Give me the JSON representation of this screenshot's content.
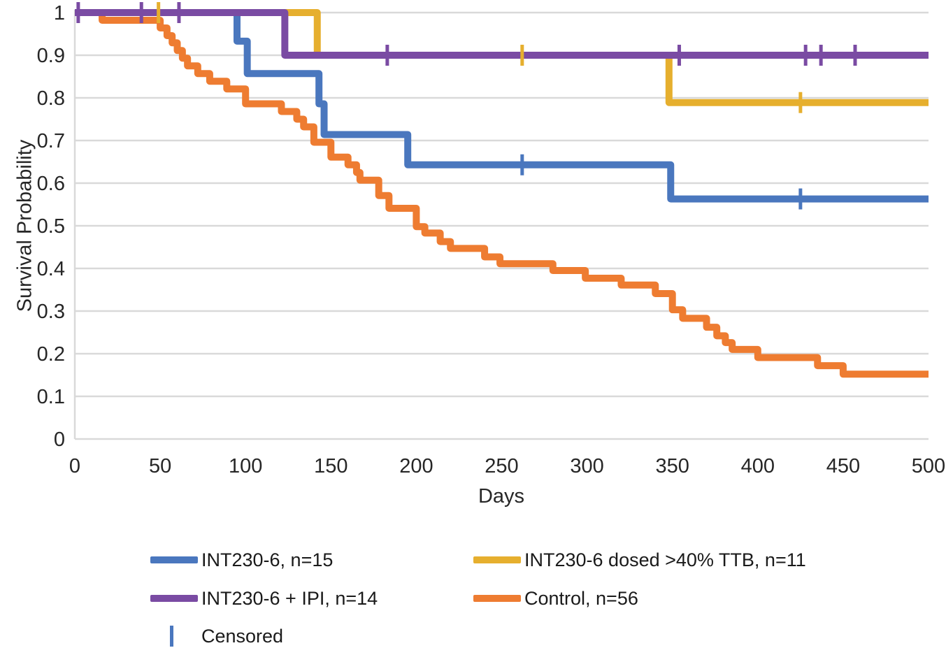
{
  "chart_data": {
    "type": "line",
    "variant": "kaplan-meier-step-curves",
    "title": "",
    "xlabel": "Days",
    "ylabel": "Survival Probability",
    "xlim": [
      0,
      500
    ],
    "ylim": [
      0,
      1
    ],
    "grid": "horizontal",
    "legend_position": "bottom",
    "xticks": [
      {
        "v": 0,
        "label": "0"
      },
      {
        "v": 50,
        "label": "50"
      },
      {
        "v": 100,
        "label": "100"
      },
      {
        "v": 150,
        "label": "150"
      },
      {
        "v": 200,
        "label": "200"
      },
      {
        "v": 250,
        "label": "250"
      },
      {
        "v": 300,
        "label": "300"
      },
      {
        "v": 350,
        "label": "350"
      },
      {
        "v": 400,
        "label": "400"
      },
      {
        "v": 450,
        "label": "450"
      },
      {
        "v": 500,
        "label": "500"
      }
    ],
    "yticks": [
      {
        "v": 0,
        "label": "0"
      },
      {
        "v": 0.1,
        "label": "0.1"
      },
      {
        "v": 0.2,
        "label": "0.2"
      },
      {
        "v": 0.3,
        "label": "0.3"
      },
      {
        "v": 0.4,
        "label": "0.4"
      },
      {
        "v": 0.5,
        "label": "0.5"
      },
      {
        "v": 0.6,
        "label": "0.6"
      },
      {
        "v": 0.7,
        "label": "0.7"
      },
      {
        "v": 0.8,
        "label": "0.8"
      },
      {
        "v": 0.9,
        "label": "0.9"
      },
      {
        "v": 1,
        "label": "1"
      }
    ],
    "series": [
      {
        "name": "Control, n=56",
        "color": "#EE7C31",
        "points": [
          [
            0,
            1.0
          ],
          [
            16,
            0.982
          ],
          [
            50,
            0.964
          ],
          [
            54,
            0.946
          ],
          [
            57,
            0.929
          ],
          [
            60,
            0.911
          ],
          [
            63,
            0.893
          ],
          [
            66,
            0.875
          ],
          [
            72,
            0.857
          ],
          [
            79,
            0.839
          ],
          [
            89,
            0.821
          ],
          [
            100,
            0.786
          ],
          [
            121,
            0.768
          ],
          [
            130,
            0.75
          ],
          [
            134,
            0.732
          ],
          [
            140,
            0.696
          ],
          [
            150,
            0.661
          ],
          [
            160,
            0.643
          ],
          [
            165,
            0.625
          ],
          [
            167,
            0.607
          ],
          [
            178,
            0.571
          ],
          [
            184,
            0.541
          ],
          [
            200,
            0.498
          ],
          [
            205,
            0.483
          ],
          [
            214,
            0.463
          ],
          [
            220,
            0.447
          ],
          [
            240,
            0.427
          ],
          [
            249,
            0.411
          ],
          [
            280,
            0.395
          ],
          [
            299,
            0.377
          ],
          [
            320,
            0.361
          ],
          [
            340,
            0.341
          ],
          [
            350,
            0.303
          ],
          [
            356,
            0.283
          ],
          [
            370,
            0.262
          ],
          [
            376,
            0.242
          ],
          [
            381,
            0.226
          ],
          [
            385,
            0.21
          ],
          [
            400,
            0.191
          ],
          [
            435,
            0.172
          ],
          [
            450,
            0.152
          ],
          [
            500,
            0.152
          ]
        ],
        "censored": []
      },
      {
        "name": "INT230-6, n=15",
        "color": "#4A77BE",
        "points": [
          [
            0,
            1.0
          ],
          [
            95,
            0.933
          ],
          [
            101,
            0.857
          ],
          [
            143,
            0.786
          ],
          [
            146,
            0.714
          ],
          [
            195,
            0.643
          ],
          [
            349,
            0.563
          ],
          [
            500,
            0.563
          ]
        ],
        "censored": [
          [
            262,
            0.643
          ],
          [
            425,
            0.563
          ]
        ]
      },
      {
        "name": "INT230-6 dosed >40% TTB, n=11",
        "color": "#E6AF2E",
        "points": [
          [
            0,
            1.0
          ],
          [
            142,
            0.9
          ],
          [
            348,
            0.789
          ],
          [
            500,
            0.789
          ]
        ],
        "censored": [
          [
            49,
            1.0
          ],
          [
            262,
            0.9
          ],
          [
            425,
            0.789
          ]
        ]
      },
      {
        "name": "INT230-6 + IPI, n=14",
        "color": "#7A4BA3",
        "points": [
          [
            0,
            1.0
          ],
          [
            123,
            0.9
          ],
          [
            500,
            0.9
          ]
        ],
        "censored": [
          [
            2,
            1.0
          ],
          [
            39,
            1.0
          ],
          [
            61,
            1.0
          ],
          [
            183,
            0.9
          ],
          [
            354,
            0.9
          ],
          [
            428,
            0.9
          ],
          [
            437,
            0.9
          ],
          [
            457,
            0.9
          ]
        ]
      }
    ],
    "censored_marker": "vertical-tick",
    "colors": {
      "gridline": "#D9D9D9",
      "axis_text": "#262626"
    }
  },
  "legend": {
    "censored_label": "Censored"
  }
}
